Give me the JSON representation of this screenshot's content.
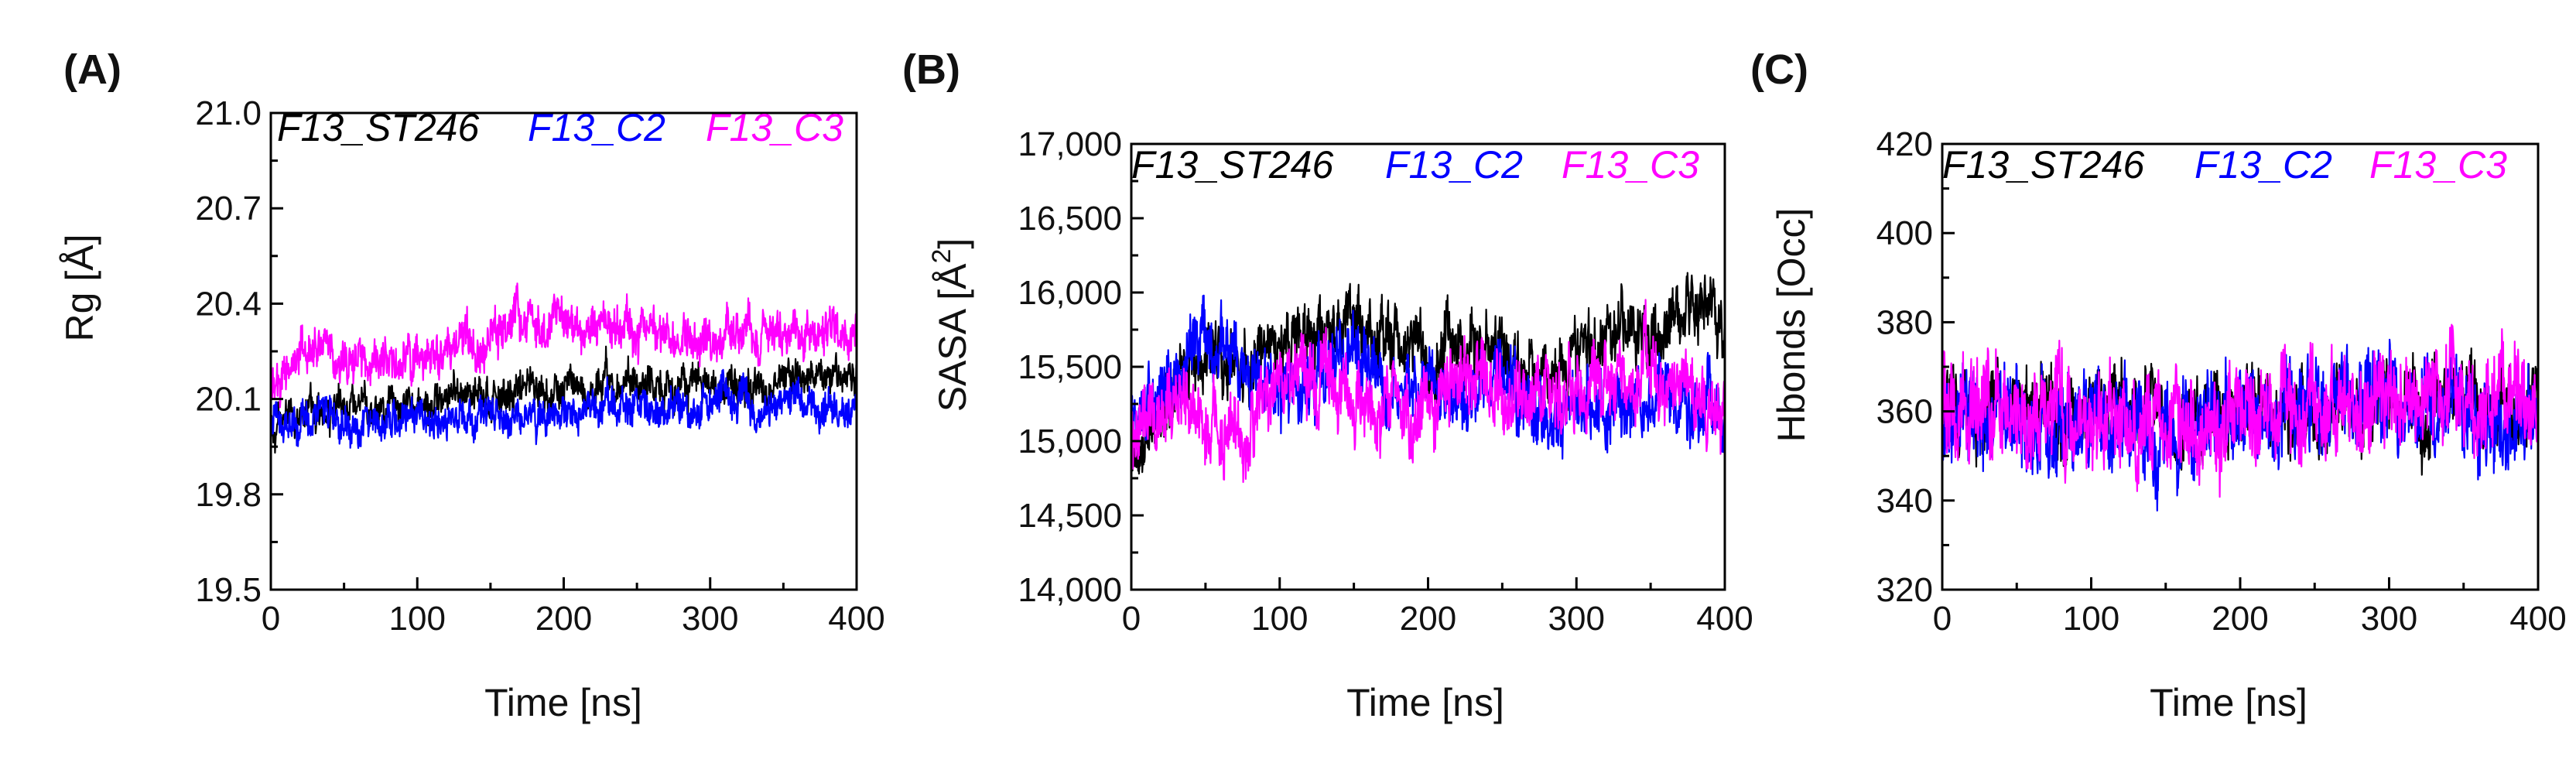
{
  "chart_data": [
    {
      "type": "line",
      "panel_label": "(A)",
      "xlabel": "Time [ns]",
      "ylabel": "Rg [Å]",
      "xlim": [
        0,
        400
      ],
      "ylim": [
        19.5,
        21.0
      ],
      "xticks": [
        0,
        100,
        200,
        300,
        400
      ],
      "yticks": [
        19.5,
        19.8,
        20.1,
        20.4,
        20.7,
        21.0
      ],
      "xtick_labels": [
        "0",
        "100",
        "200",
        "300",
        "400"
      ],
      "ytick_labels": [
        "19.5",
        "19.8",
        "20.1",
        "20.4",
        "20.7",
        "21.0"
      ],
      "grid": false,
      "legend_placement": "top-left",
      "series": [
        {
          "name": "F13_ST246",
          "color": "#000000",
          "x": [
            0,
            25,
            50,
            75,
            100,
            125,
            150,
            175,
            200,
            225,
            250,
            275,
            300,
            325,
            350,
            375,
            400
          ],
          "y": [
            20.0,
            20.08,
            20.06,
            20.08,
            20.07,
            20.1,
            20.12,
            20.14,
            20.13,
            20.16,
            20.15,
            20.14,
            20.14,
            20.14,
            20.16,
            20.17,
            20.15
          ],
          "noise": 0.05
        },
        {
          "name": "F13_C2",
          "color": "#0000ff",
          "x": [
            0,
            25,
            50,
            75,
            100,
            125,
            150,
            175,
            200,
            225,
            250,
            275,
            300,
            325,
            350,
            375,
            400
          ],
          "y": [
            20.0,
            20.06,
            20.02,
            20.03,
            20.04,
            20.04,
            20.05,
            20.03,
            20.05,
            20.08,
            20.07,
            20.08,
            20.09,
            20.09,
            20.08,
            20.09,
            20.06
          ],
          "noise": 0.05
        },
        {
          "name": "F13_C3",
          "color": "#ff00ff",
          "x": [
            0,
            25,
            50,
            75,
            100,
            125,
            150,
            175,
            200,
            225,
            250,
            275,
            300,
            325,
            350,
            375,
            400
          ],
          "y": [
            20.15,
            20.27,
            20.24,
            20.22,
            20.22,
            20.26,
            20.3,
            20.36,
            20.35,
            20.32,
            20.32,
            20.29,
            20.29,
            20.3,
            20.3,
            20.31,
            20.3
          ],
          "noise": 0.06
        }
      ]
    },
    {
      "type": "line",
      "panel_label": "(B)",
      "xlabel": "Time [ns]",
      "ylabel": "SASA [Å²]",
      "ylabel_main": "SASA [Å",
      "ylabel_sup": "2",
      "ylabel_end": "]",
      "xlim": [
        0,
        400
      ],
      "ylim": [
        14000,
        17000
      ],
      "xticks": [
        0,
        100,
        200,
        300,
        400
      ],
      "yticks": [
        14000,
        14500,
        15000,
        15500,
        16000,
        16500,
        17000
      ],
      "xtick_labels": [
        "0",
        "100",
        "200",
        "300",
        "400"
      ],
      "ytick_labels": [
        "14,000",
        "14,500",
        "15,000",
        "15,500",
        "16,000",
        "16,500",
        "17,000"
      ],
      "grid": false,
      "legend_placement": "top-left",
      "series": [
        {
          "name": "F13_ST246",
          "color": "#000000",
          "x": [
            0,
            25,
            50,
            75,
            100,
            125,
            150,
            175,
            200,
            225,
            250,
            275,
            300,
            325,
            350,
            375,
            400
          ],
          "y": [
            14900,
            15400,
            15600,
            15500,
            15600,
            15700,
            15750,
            15700,
            15600,
            15650,
            15550,
            15450,
            15600,
            15650,
            15750,
            15900,
            15800
          ],
          "noise": 190
        },
        {
          "name": "F13_C2",
          "color": "#0000ff",
          "x": [
            0,
            25,
            50,
            75,
            100,
            125,
            150,
            175,
            200,
            225,
            250,
            275,
            300,
            325,
            350,
            375,
            400
          ],
          "y": [
            15100,
            15400,
            15750,
            15500,
            15300,
            15400,
            15550,
            15300,
            15400,
            15200,
            15350,
            15100,
            15200,
            15150,
            15300,
            15200,
            15250
          ],
          "noise": 200
        },
        {
          "name": "F13_C3",
          "color": "#ff00ff",
          "x": [
            0,
            25,
            50,
            75,
            100,
            125,
            150,
            175,
            200,
            225,
            250,
            275,
            300,
            325,
            350,
            375,
            400
          ],
          "y": [
            15000,
            15300,
            15100,
            15000,
            15400,
            15500,
            15300,
            15250,
            15200,
            15500,
            15350,
            15300,
            15400,
            15350,
            15500,
            15300,
            15200
          ],
          "noise": 210
        }
      ]
    },
    {
      "type": "line",
      "panel_label": "(C)",
      "xlabel": "Time [ns]",
      "ylabel": "Hbonds [Occ]",
      "xlim": [
        0,
        400
      ],
      "ylim": [
        320,
        420
      ],
      "xticks": [
        0,
        100,
        200,
        300,
        400
      ],
      "yticks": [
        320,
        340,
        360,
        380,
        400,
        420
      ],
      "xtick_labels": [
        "0",
        "100",
        "200",
        "300",
        "400"
      ],
      "ytick_labels": [
        "320",
        "340",
        "360",
        "380",
        "400",
        "420"
      ],
      "grid": false,
      "legend_placement": "top-left",
      "series": [
        {
          "name": "F13_ST246",
          "color": "#000000",
          "x": [
            0,
            50,
            100,
            150,
            200,
            250,
            300,
            350,
            400
          ],
          "y": [
            360,
            360,
            359,
            359,
            360,
            360,
            361,
            361,
            360
          ],
          "noise": 7
        },
        {
          "name": "F13_C2",
          "color": "#0000ff",
          "x": [
            0,
            50,
            100,
            150,
            200,
            250,
            300,
            350,
            400
          ],
          "y": [
            360,
            358,
            356,
            357,
            358,
            360,
            361,
            359,
            358
          ],
          "noise": 9
        },
        {
          "name": "F13_C3",
          "color": "#ff00ff",
          "x": [
            0,
            50,
            100,
            150,
            200,
            250,
            300,
            350,
            400
          ],
          "y": [
            362,
            361,
            359,
            357,
            358,
            359,
            361,
            363,
            362
          ],
          "noise": 9
        }
      ]
    }
  ]
}
